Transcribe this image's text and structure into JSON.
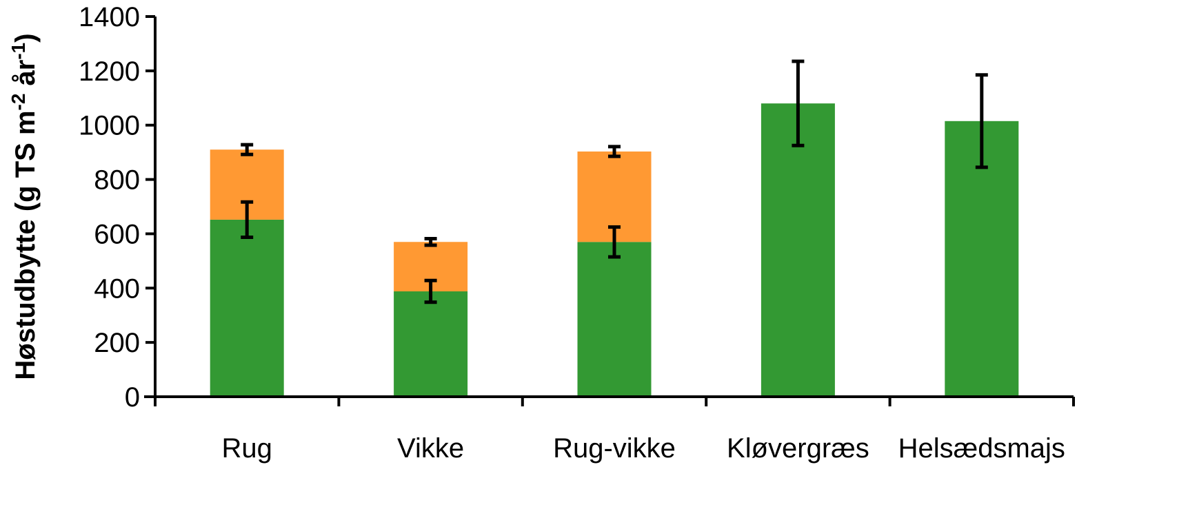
{
  "chart_data": {
    "type": "bar",
    "stacked": true,
    "title": "",
    "xlabel": "",
    "ylabel": {
      "main": "Høstudbytte (g TS m",
      "sup1": "-2",
      "middle": " år",
      "sup2": "-1",
      "end": ")"
    },
    "ylim": [
      0,
      1400
    ],
    "yticks": [
      0,
      200,
      400,
      600,
      800,
      1000,
      1200,
      1400
    ],
    "categories": [
      "Rug",
      "Vikke",
      "Rug-vikke",
      "Kløvergræs",
      "Helsædsmajs"
    ],
    "series": [
      {
        "color": "#339933",
        "values": [
          652,
          388,
          570,
          1080,
          1015
        ],
        "error": [
          65,
          40,
          55,
          155,
          170
        ]
      },
      {
        "color": "#FF9933",
        "values": [
          258,
          182,
          333,
          0,
          0
        ],
        "error": [
          18,
          12,
          18,
          null,
          null
        ]
      }
    ],
    "grid": false,
    "legend": "none"
  },
  "colors": {
    "axis": "#000000",
    "error_bar": "#000000"
  }
}
